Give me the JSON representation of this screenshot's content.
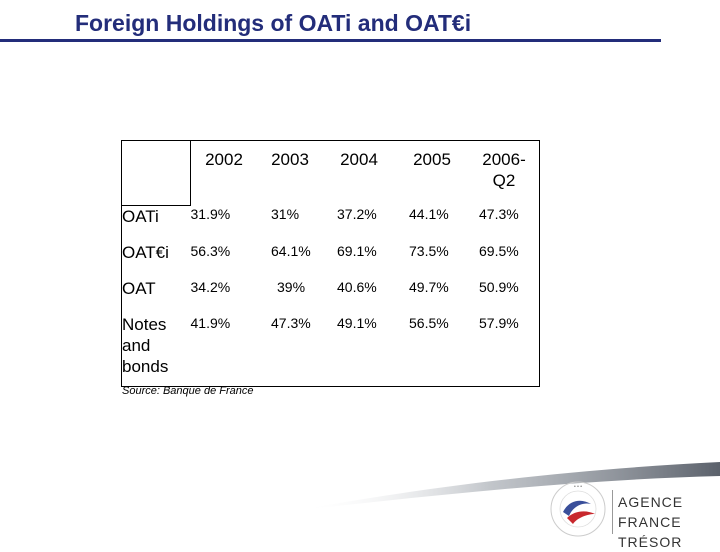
{
  "title": "Foreign Holdings of OATi and OAT€i",
  "table": {
    "columns": [
      "2002",
      "2003",
      "2004",
      "2005",
      "2006-\nQ2"
    ],
    "rows": [
      {
        "label": "OATi",
        "values": [
          "31.9%",
          "31%",
          "37.2%",
          "44.1%",
          "47.3%"
        ]
      },
      {
        "label": "OAT€i",
        "values": [
          "56.3%",
          "64.1%",
          "69.1%",
          "73.5%",
          "69.5%"
        ]
      },
      {
        "label": "OAT",
        "values": [
          "34.2%",
          "39%",
          "40.6%",
          "49.7%",
          "50.9%"
        ]
      },
      {
        "label": "Notes\nand\nbonds",
        "values": [
          "41.9%",
          "47.3%",
          "49.1%",
          "56.5%",
          "57.9%"
        ]
      }
    ]
  },
  "source": "Source: Banque de France",
  "logo": {
    "line1": "AGENCE",
    "line2": "FRANCE TRÉSOR",
    "ring_text": "AGENCE FRANCE TRÉSOR"
  },
  "colors": {
    "title": "#232d7a",
    "logo_red": "#c8282d",
    "logo_blue": "#3a4f9a"
  }
}
